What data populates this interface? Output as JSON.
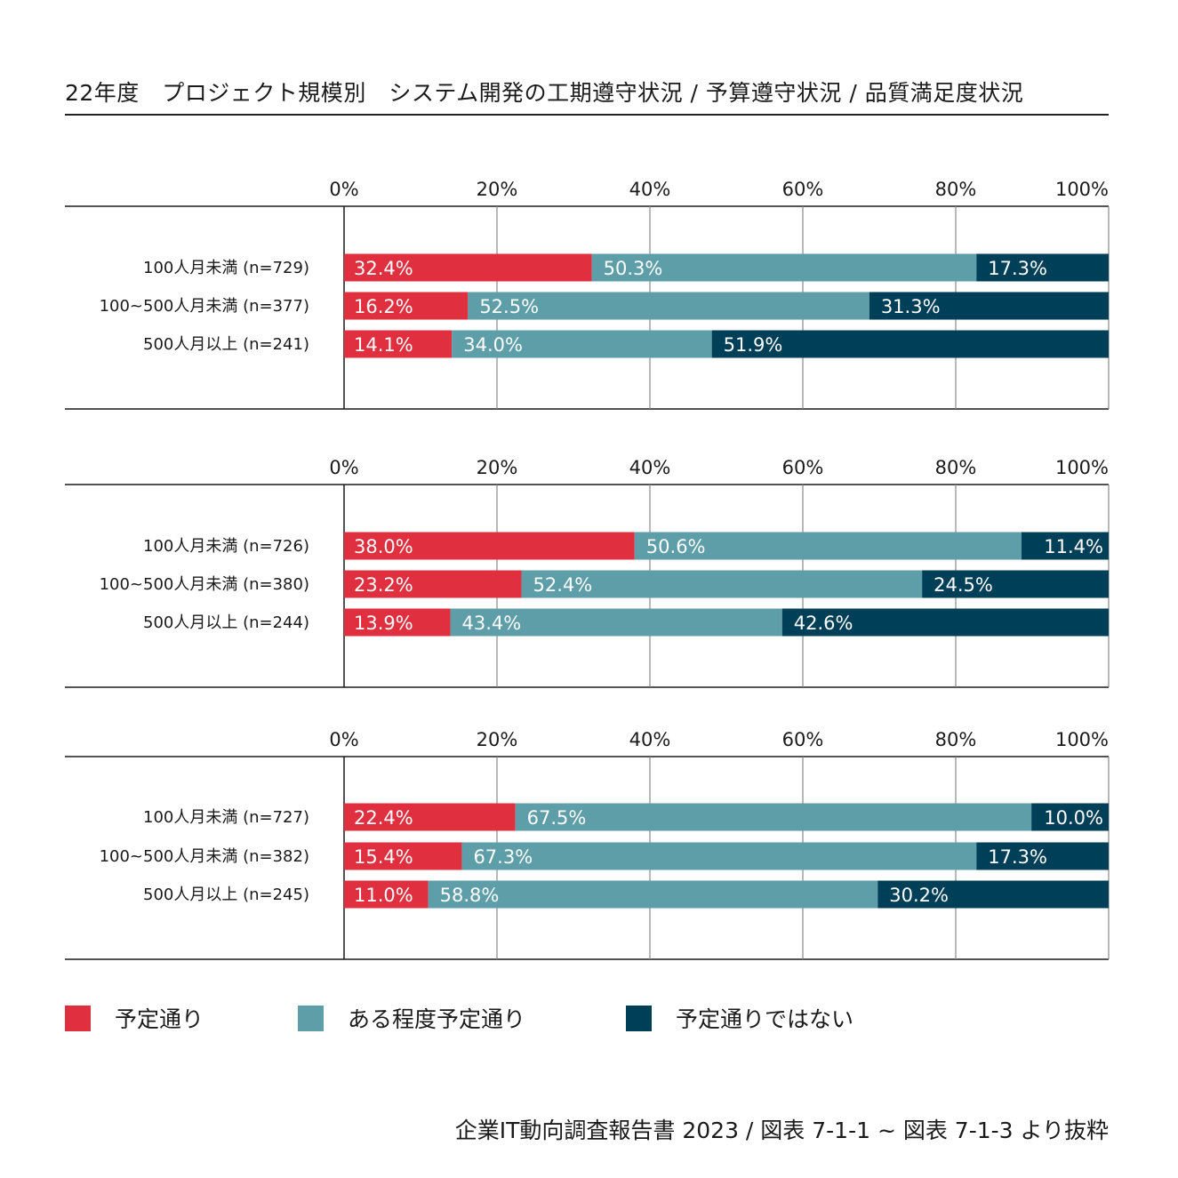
{
  "title": "22年度　プロジェクト規模別　システム開発の工期遵守状況 / 予算遵守状況 / 品質満足度状況",
  "source": "企業IT動向調査報告書 2023 / 図表 7-1-1 ~ 図表 7-1-3 より抜粋",
  "colors": {
    "on_schedule": "#e02f3f",
    "mostly_on_schedule": "#5e9ea8",
    "not_on_schedule": "#003f58"
  },
  "legend": [
    {
      "label": "予定通り",
      "color": "#e02f3f"
    },
    {
      "label": "ある程度予定通り",
      "color": "#5e9ea8"
    },
    {
      "label": "予定通りではない",
      "color": "#003f58"
    }
  ],
  "chart_data": [
    {
      "type": "bar",
      "stacked": true,
      "orientation": "horizontal",
      "xlim": [
        0,
        100
      ],
      "ticks": [
        "0%",
        "20%",
        "40%",
        "60%",
        "80%",
        "100%"
      ],
      "grid": true,
      "categories": [
        "100人月未満 (n=729)",
        "100~500人月未満 (n=377)",
        "500人月以上 (n=241)"
      ],
      "series": [
        {
          "name": "予定通り",
          "values": [
            32.4,
            16.2,
            14.1
          ],
          "labels": [
            "32.4%",
            "16.2%",
            "14.1%"
          ]
        },
        {
          "name": "ある程度予定通り",
          "values": [
            50.3,
            52.5,
            34.0
          ],
          "labels": [
            "50.3%",
            "52.5%",
            "34.0%"
          ]
        },
        {
          "name": "予定通りではない",
          "values": [
            17.3,
            31.3,
            51.9
          ],
          "labels": [
            "17.3%",
            "31.3%",
            "51.9%"
          ]
        }
      ]
    },
    {
      "type": "bar",
      "stacked": true,
      "orientation": "horizontal",
      "xlim": [
        0,
        100
      ],
      "ticks": [
        "0%",
        "20%",
        "40%",
        "60%",
        "80%",
        "100%"
      ],
      "grid": true,
      "categories": [
        "100人月未満 (n=726)",
        "100~500人月未満 (n=380)",
        "500人月以上 (n=244)"
      ],
      "series": [
        {
          "name": "予定通り",
          "values": [
            38.0,
            23.2,
            13.9
          ],
          "labels": [
            "38.0%",
            "23.2%",
            "13.9%"
          ]
        },
        {
          "name": "ある程度予定通り",
          "values": [
            50.6,
            52.4,
            43.4
          ],
          "labels": [
            "50.6%",
            "52.4%",
            "43.4%"
          ]
        },
        {
          "name": "予定通りではない",
          "values": [
            11.4,
            24.5,
            42.6
          ],
          "labels": [
            "11.4%",
            "24.5%",
            "42.6%"
          ]
        }
      ]
    },
    {
      "type": "bar",
      "stacked": true,
      "orientation": "horizontal",
      "xlim": [
        0,
        100
      ],
      "ticks": [
        "0%",
        "20%",
        "40%",
        "60%",
        "80%",
        "100%"
      ],
      "grid": true,
      "categories": [
        "100人月未満 (n=727)",
        "100~500人月未満 (n=382)",
        "500人月以上 (n=245)"
      ],
      "series": [
        {
          "name": "予定通り",
          "values": [
            22.4,
            15.4,
            11.0
          ],
          "labels": [
            "22.4%",
            "15.4%",
            "11.0%"
          ]
        },
        {
          "name": "ある程度予定通り",
          "values": [
            67.5,
            67.3,
            58.8
          ],
          "labels": [
            "67.5%",
            "67.3%",
            "58.8%"
          ]
        },
        {
          "name": "予定通りではない",
          "values": [
            10.0,
            17.3,
            30.2
          ],
          "labels": [
            "10.0%",
            "17.3%",
            "30.2%"
          ]
        }
      ]
    }
  ]
}
